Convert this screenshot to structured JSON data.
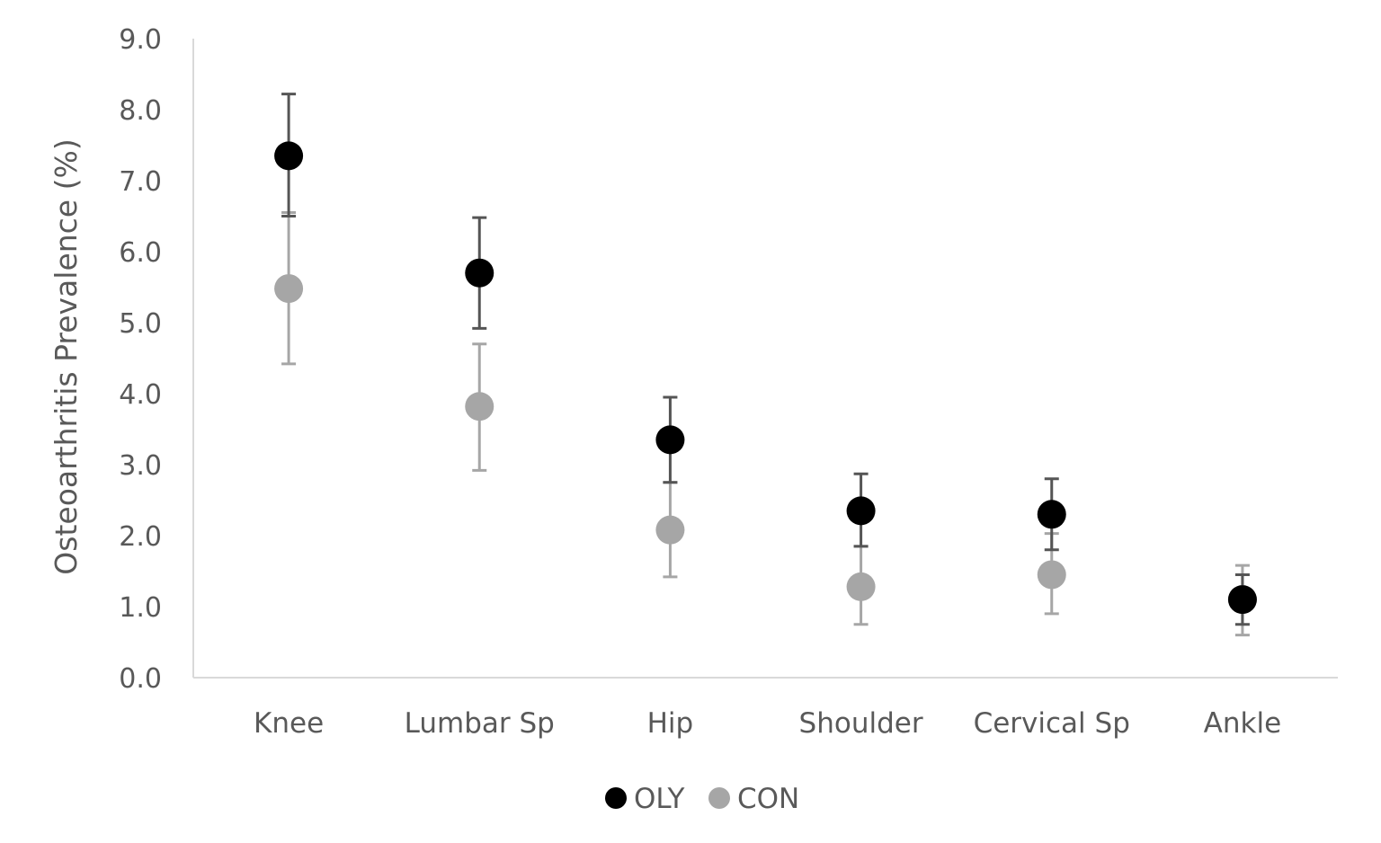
{
  "chart_data": {
    "type": "scatter",
    "ylabel": "Osteoarthritis Prevalence (%)",
    "xlabel": "",
    "ylim": [
      0,
      9
    ],
    "y_ticks": [
      "0.0",
      "1.0",
      "2.0",
      "3.0",
      "4.0",
      "5.0",
      "6.0",
      "7.0",
      "8.0",
      "9.0"
    ],
    "categories": [
      "Knee",
      "Lumbar Sp",
      "Hip",
      "Shoulder",
      "Cervical Sp",
      "Ankle"
    ],
    "grid": false,
    "legend_position": "bottom",
    "series": [
      {
        "name": "OLY",
        "color": "#000000",
        "error_color": "#555555",
        "values": [
          7.35,
          5.7,
          3.35,
          2.35,
          2.3,
          1.1
        ],
        "error_low": [
          6.5,
          4.92,
          2.75,
          1.85,
          1.8,
          0.75
        ],
        "error_high": [
          8.22,
          6.48,
          3.95,
          2.87,
          2.8,
          1.45
        ]
      },
      {
        "name": "CON",
        "color": "#a6a6a6",
        "error_color": "#a6a6a6",
        "values": [
          5.48,
          3.82,
          2.08,
          1.28,
          1.45,
          1.1
        ],
        "error_low": [
          4.42,
          2.92,
          1.42,
          0.75,
          0.9,
          0.6
        ],
        "error_high": [
          6.55,
          4.7,
          2.75,
          1.85,
          2.03,
          1.58
        ]
      }
    ]
  }
}
